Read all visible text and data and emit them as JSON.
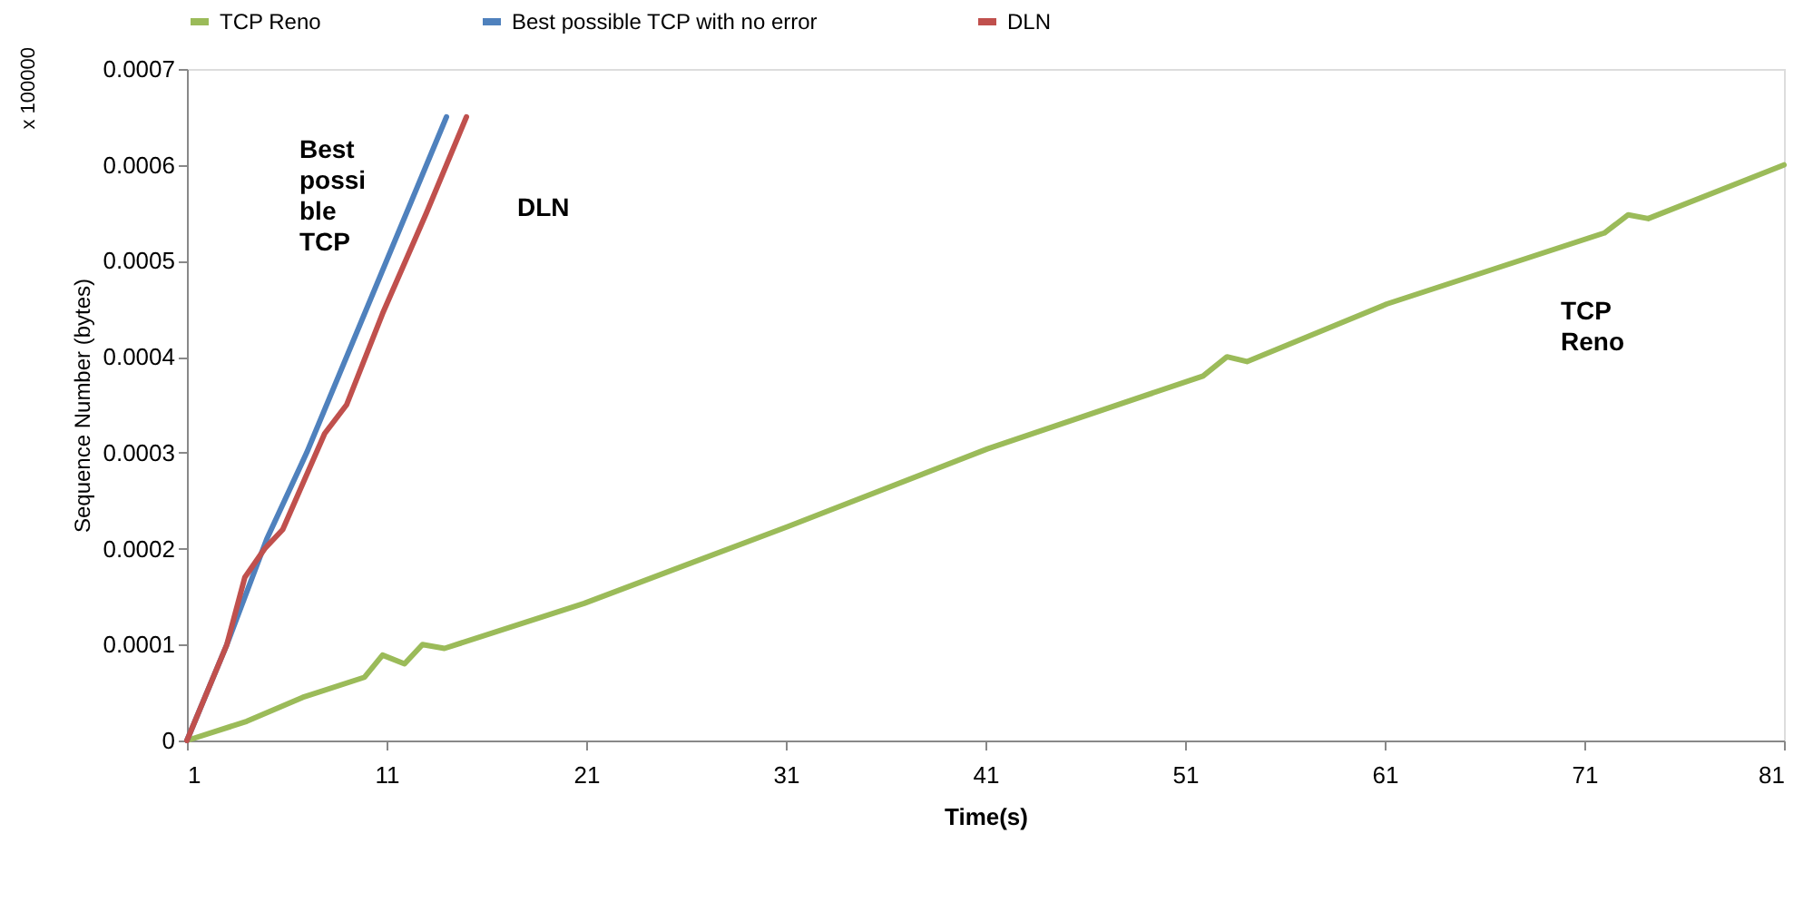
{
  "chart_data": {
    "type": "line",
    "xlabel": "Time(s)",
    "ylabel": "Sequence Number (bytes)",
    "xlim": [
      1,
      81
    ],
    "xticks": [
      1,
      11,
      21,
      31,
      41,
      51,
      61,
      71,
      81
    ],
    "ylim": [
      0,
      0.0007
    ],
    "yticks": [
      0,
      0.0001,
      0.0002,
      0.0003,
      0.0004,
      0.0005,
      0.0006,
      0.0007
    ],
    "grid": false,
    "legend": "top",
    "marker": "none",
    "line_style": "solid",
    "series": [
      {
        "name": "TCP Reno",
        "color": "#9bbb59",
        "x": [
          1,
          4,
          6.8,
          9.9,
          10.8,
          11.9,
          12.8,
          13.9,
          20.9,
          31.1,
          41.1,
          51.9,
          53.1,
          54.1,
          61.1,
          72,
          73.2,
          74.2,
          81
        ],
        "values": [
          0,
          2e-05,
          4.5e-05,
          6.6e-05,
          8.9e-05,
          8e-05,
          0.0001,
          9.6e-05,
          0.000143,
          0.000223,
          0.000304,
          0.00038,
          0.0004,
          0.000395,
          0.000455,
          0.000529,
          0.000548,
          0.000544,
          0.0006
        ]
      },
      {
        "name": "Best possible TCP with no error",
        "color": "#4f81bd",
        "x": [
          1,
          3,
          5,
          7,
          9,
          11,
          12,
          14
        ],
        "values": [
          0,
          0.0001,
          0.00021,
          0.0003,
          0.0004,
          0.0005,
          0.00055,
          0.00065
        ]
      },
      {
        "name": "DLN",
        "color": "#c0504d",
        "x": [
          1,
          2,
          3,
          3.9,
          4.9,
          5.8,
          7.9,
          9,
          10.8,
          13,
          15
        ],
        "values": [
          0,
          5e-05,
          0.0001,
          0.00017,
          0.0002,
          0.00022,
          0.00032,
          0.00035,
          0.000445,
          0.00055,
          0.00065
        ]
      }
    ],
    "annotations": [
      "Best\npossi\nble\nTCP",
      "DLN",
      "TCP\nReno",
      "x 100000"
    ]
  }
}
